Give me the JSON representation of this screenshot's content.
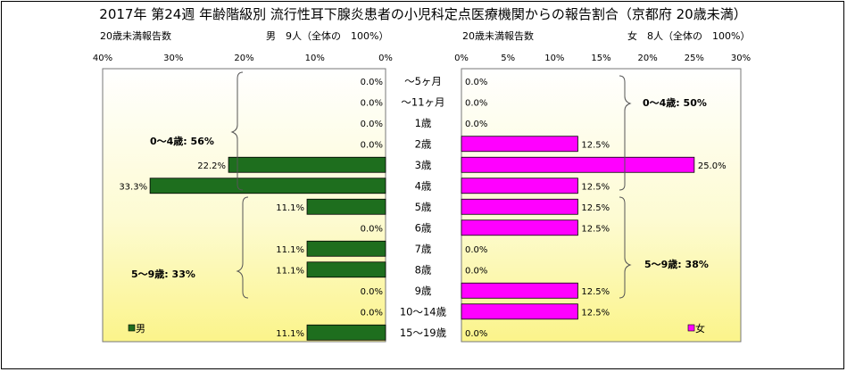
{
  "title": "2017年 第24週 年齢階級別 流行性耳下腺炎患者の小児科定点医療機関からの報告割合（京都府 20歳未満）",
  "left_panel": {
    "subtitle_left": "20歳未満報告数",
    "subtitle_right": "男　9人（全体の　100%）",
    "group_labels": [
      "0～4歳: 56%",
      "5～9歳: 33%"
    ],
    "legend_label": "男"
  },
  "right_panel": {
    "subtitle_left": "20歳未満報告数",
    "subtitle_right": "女　8人（全体の　100%）",
    "group_labels": [
      "0～4歳: 50%",
      "5～9歳: 38%"
    ],
    "legend_label": "女"
  },
  "colors": {
    "male": "#1e6e1e",
    "female": "#ff00ff"
  },
  "chart_data": [
    {
      "type": "bar",
      "orientation": "horizontal",
      "direction": "right-to-left",
      "categories": [
        "～5ヶ月",
        "～11ヶ月",
        "1歳",
        "2歳",
        "3歳",
        "4歳",
        "5歳",
        "6歳",
        "7歳",
        "8歳",
        "9歳",
        "10～14歳",
        "15～19歳"
      ],
      "series": [
        {
          "name": "男",
          "values": [
            0.0,
            0.0,
            0.0,
            0.0,
            22.2,
            33.3,
            11.1,
            0.0,
            11.1,
            11.1,
            0.0,
            0.0,
            11.1
          ],
          "labels": [
            "0.0%",
            "0.0%",
            "0.0%",
            "0.0%",
            "22.2%",
            "33.3%",
            "11.1%",
            "0.0%",
            "11.1%",
            "11.1%",
            "0.0%",
            "0.0%",
            "11.1%"
          ]
        }
      ],
      "xlim": [
        0,
        40
      ],
      "xticks": [
        "40%",
        "30%",
        "20%",
        "10%",
        "0%"
      ],
      "legend": "bottom-left"
    },
    {
      "type": "bar",
      "orientation": "horizontal",
      "categories": [
        "～5ヶ月",
        "～11ヶ月",
        "1歳",
        "2歳",
        "3歳",
        "4歳",
        "5歳",
        "6歳",
        "7歳",
        "8歳",
        "9歳",
        "10～14歳",
        "15～19歳"
      ],
      "series": [
        {
          "name": "女",
          "values": [
            0.0,
            0.0,
            0.0,
            12.5,
            25.0,
            12.5,
            12.5,
            12.5,
            0.0,
            0.0,
            12.5,
            12.5,
            0.0
          ],
          "labels": [
            "0.0%",
            "0.0%",
            "0.0%",
            "12.5%",
            "25.0%",
            "12.5%",
            "12.5%",
            "12.5%",
            "0.0%",
            "0.0%",
            "12.5%",
            "12.5%",
            "0.0%"
          ]
        }
      ],
      "xlim": [
        0,
        30
      ],
      "xticks": [
        "0%",
        "5%",
        "10%",
        "15%",
        "20%",
        "25%",
        "30%"
      ],
      "legend": "bottom-right"
    }
  ]
}
